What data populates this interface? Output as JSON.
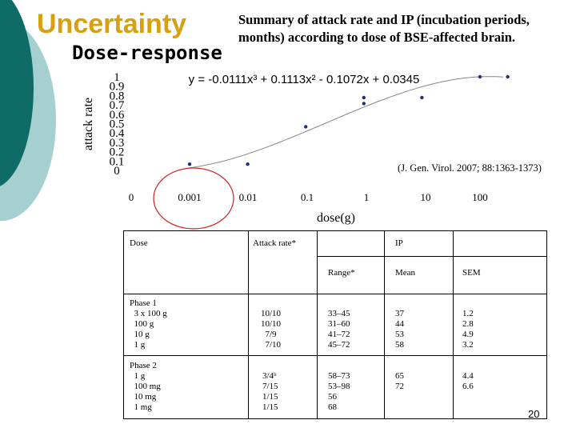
{
  "slide": {
    "title": "Uncertainty",
    "subtitle": "Dose-response",
    "summary": "Summary of attack rate and IP (incubation periods, months) according to dose of BSE-affected brain.",
    "page_number": "20"
  },
  "colors": {
    "accent_gold": "#d8a010",
    "teal_dark": "#0f6b66",
    "teal_light": "#a6d0cf",
    "marker": "#1f2f7a",
    "highlight_circle": "#d02020"
  },
  "chart_data": {
    "type": "scatter",
    "equation": "y = -0.0111x³ + 0.1113x² - 0.1072x + 0.0345",
    "citation": "(J. Gen. Virol. 2007; 88:1363-1373)",
    "xlabel": "dose(g)",
    "ylabel": "attack rate",
    "x_tick_labels": [
      "0",
      "0.001",
      "0.01",
      "0.1",
      "1",
      "10",
      "100"
    ],
    "y_tick_labels": [
      "0",
      "0.1",
      "0.2",
      "0.3",
      "0.4",
      "0.5",
      "0.6",
      "0.7",
      "0.8",
      "0.9",
      "1"
    ],
    "ylim": [
      0,
      1
    ],
    "x_scale": "log",
    "points": [
      {
        "x": 0.001,
        "y": 0.0667
      },
      {
        "x": 0.01,
        "y": 0.0667
      },
      {
        "x": 0.1,
        "y": 0.4667
      },
      {
        "x": 1,
        "y": 0.7778
      },
      {
        "x": 1,
        "y": 0.7143
      },
      {
        "x": 10,
        "y": 0.7778
      },
      {
        "x": 100,
        "y": 1.0
      },
      {
        "x": 300,
        "y": 1.0
      }
    ],
    "highlight": {
      "x": 0.001,
      "label": "0.001"
    }
  },
  "table": {
    "headers": {
      "dose": "Dose",
      "attack_rate": "Attack rate*",
      "ip": "IP",
      "range": "Range*",
      "mean": "Mean",
      "sem": "SEM"
    },
    "phase1": {
      "dose": "Phase 1\n  3 x 100 g\n  100 g\n  10 g\n  1 g",
      "attack": "10/10\n10/10\n  7/9\n  7/10",
      "range": "33–45\n31–60\n41–72\n45–72",
      "mean": "37\n44\n53\n58",
      "sem": "1.2\n2.8\n4.9\n3.2"
    },
    "phase2": {
      "dose": "Phase 2\n  1 g\n  100 mg\n  10 mg\n  1 mg",
      "attack": "3/4ᵇ\n7/15\n1/15\n1/15",
      "range": "58–73\n53–98\n56\n68",
      "mean": "65\n72",
      "sem": "4.4\n6.6"
    }
  }
}
